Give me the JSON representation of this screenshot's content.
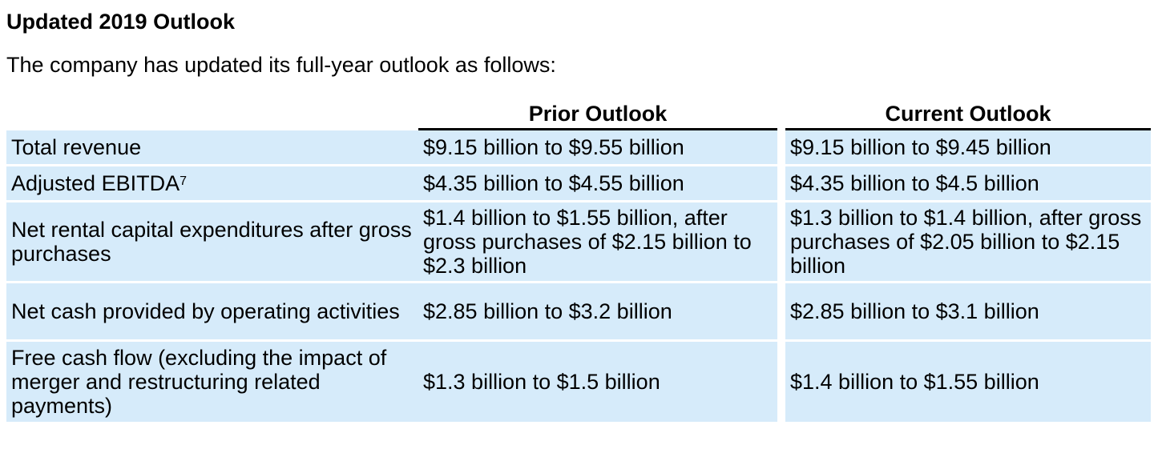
{
  "heading": "Updated 2019 Outlook",
  "intro": "The company has updated its full-year outlook as follows:",
  "columns": {
    "prior": "Prior Outlook",
    "current": "Current Outlook"
  },
  "rows": [
    {
      "label": "Total revenue",
      "footnote": "",
      "prior": "$9.15 billion to $9.55 billion",
      "current": "$9.15 billion to $9.45 billion"
    },
    {
      "label": "Adjusted EBITDA",
      "footnote": "7",
      "prior": "$4.35 billion to $4.55 billion",
      "current": "$4.35 billion to $4.5 billion"
    },
    {
      "label": "Net rental capital expenditures after gross purchases",
      "footnote": "",
      "prior": "$1.4 billion to $1.55 billion, after gross purchases of $2.15 billion to $2.3 billion",
      "current": "$1.3 billion to $1.4 billion, after gross purchases of $2.05 billion to $2.15 billion"
    },
    {
      "label": "Net cash provided by operating activities",
      "footnote": "",
      "prior": "$2.85 billion to $3.2 billion",
      "current": "$2.85 billion to $3.1 billion"
    },
    {
      "label": "Free cash flow (excluding the impact of merger and restructuring related payments)",
      "footnote": "",
      "prior": "$1.3 billion to $1.5 billion",
      "current": "$1.4 billion to $1.55 billion"
    }
  ]
}
